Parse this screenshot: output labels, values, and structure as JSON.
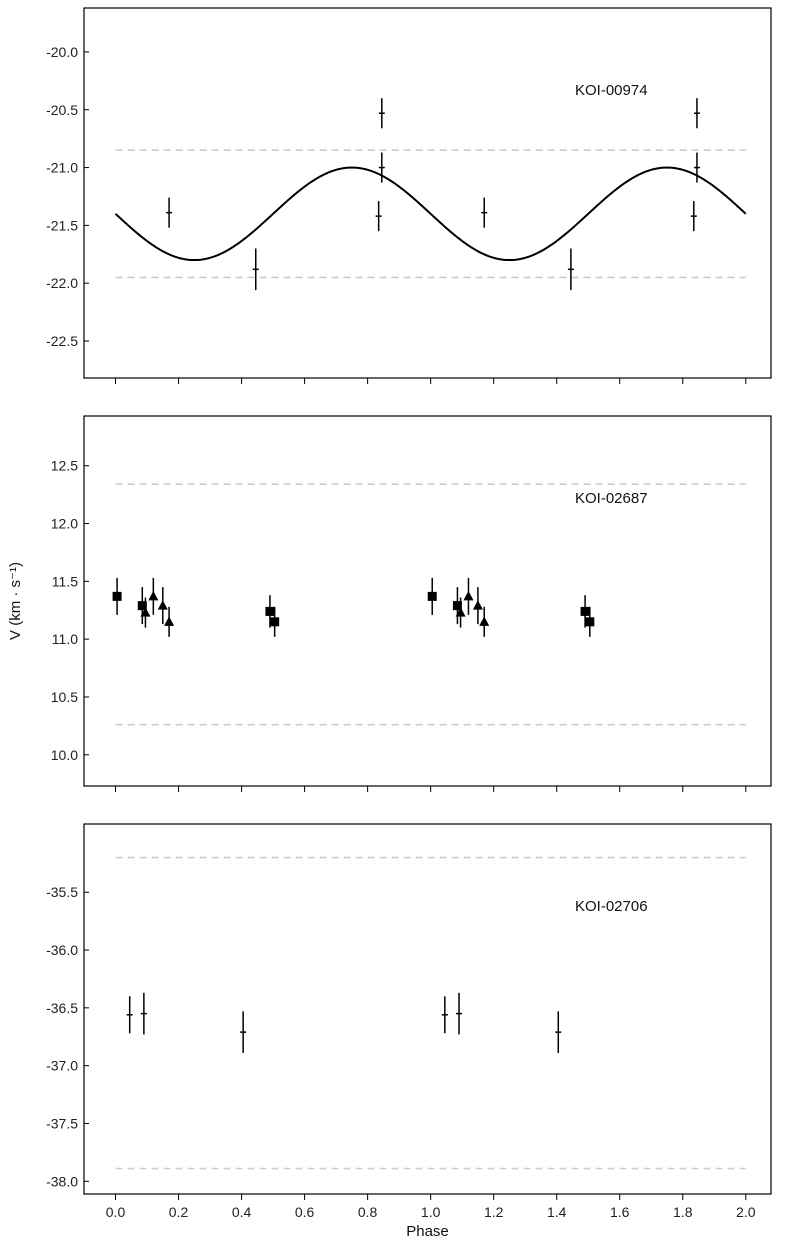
{
  "chart_data": [
    {
      "type": "scatter",
      "label": "KOI-00974",
      "ylim": [
        -22.82,
        -19.62
      ],
      "yticks": [
        -20.0,
        -20.5,
        -21.0,
        -21.5,
        -22.0,
        -22.5
      ],
      "ytick_labels": [
        "-20.0",
        "-20.5",
        "-21.0",
        "-21.5",
        "-22.0",
        "-22.5"
      ],
      "reference_lines": [
        -20.85,
        -21.95
      ],
      "model_curve": {
        "kind": "sinusoid",
        "mean": -21.4,
        "amplitude": 0.4,
        "minimum_phase": 0.25,
        "period": 1.0
      },
      "series": [
        {
          "marker": "cross",
          "points": [
            {
              "x": 0.17,
              "y": -21.39,
              "err": 0.13
            },
            {
              "x": 0.445,
              "y": -21.88,
              "err": 0.18
            },
            {
              "x": 0.835,
              "y": -21.42,
              "err": 0.13
            },
            {
              "x": 0.845,
              "y": -20.53,
              "err": 0.13
            },
            {
              "x": 0.845,
              "y": -21.0,
              "err": 0.13
            },
            {
              "x": 1.17,
              "y": -21.39,
              "err": 0.13
            },
            {
              "x": 1.445,
              "y": -21.88,
              "err": 0.18
            },
            {
              "x": 1.835,
              "y": -21.42,
              "err": 0.13
            },
            {
              "x": 1.845,
              "y": -20.53,
              "err": 0.13
            },
            {
              "x": 1.845,
              "y": -21.0,
              "err": 0.13
            }
          ]
        }
      ]
    },
    {
      "type": "scatter",
      "label": "KOI-02687",
      "ylim": [
        9.73,
        12.93
      ],
      "yticks": [
        10.0,
        10.5,
        11.0,
        11.5,
        12.0,
        12.5
      ],
      "ytick_labels": [
        "10.0",
        "10.5",
        "11.0",
        "11.5",
        "12.0",
        "12.5"
      ],
      "ylabel": "V (km · s⁻¹)",
      "reference_lines": [
        12.34,
        10.26
      ],
      "series": [
        {
          "marker": "square",
          "points": [
            {
              "x": 0.005,
              "y": 11.37,
              "err": 0.16
            },
            {
              "x": 0.085,
              "y": 11.29,
              "err": 0.16
            },
            {
              "x": 0.49,
              "y": 11.24,
              "err": 0.14
            },
            {
              "x": 0.505,
              "y": 11.15,
              "err": 0.13
            },
            {
              "x": 1.005,
              "y": 11.37,
              "err": 0.16
            },
            {
              "x": 1.085,
              "y": 11.29,
              "err": 0.16
            },
            {
              "x": 1.49,
              "y": 11.24,
              "err": 0.14
            },
            {
              "x": 1.505,
              "y": 11.15,
              "err": 0.13
            }
          ]
        },
        {
          "marker": "triangle",
          "points": [
            {
              "x": 0.095,
              "y": 11.23,
              "err": 0.13
            },
            {
              "x": 0.12,
              "y": 11.37,
              "err": 0.16
            },
            {
              "x": 0.15,
              "y": 11.29,
              "err": 0.16
            },
            {
              "x": 0.17,
              "y": 11.15,
              "err": 0.13
            },
            {
              "x": 1.095,
              "y": 11.23,
              "err": 0.13
            },
            {
              "x": 1.12,
              "y": 11.37,
              "err": 0.16
            },
            {
              "x": 1.15,
              "y": 11.29,
              "err": 0.16
            },
            {
              "x": 1.17,
              "y": 11.15,
              "err": 0.13
            }
          ]
        }
      ]
    },
    {
      "type": "scatter",
      "label": "KOI-02706",
      "ylim": [
        -38.11,
        -34.91
      ],
      "yticks": [
        -35.5,
        -36.0,
        -36.5,
        -37.0,
        -37.5,
        -38.0
      ],
      "ytick_labels": [
        "-35.5",
        "-36.0",
        "-36.5",
        "-37.0",
        "-37.5",
        "-38.0"
      ],
      "reference_lines": [
        -35.2,
        -37.89
      ],
      "series": [
        {
          "marker": "cross",
          "points": [
            {
              "x": 0.045,
              "y": -36.56,
              "err": 0.16
            },
            {
              "x": 0.09,
              "y": -36.55,
              "err": 0.18
            },
            {
              "x": 0.405,
              "y": -36.71,
              "err": 0.18
            },
            {
              "x": 1.045,
              "y": -36.56,
              "err": 0.16
            },
            {
              "x": 1.09,
              "y": -36.55,
              "err": 0.18
            },
            {
              "x": 1.405,
              "y": -36.71,
              "err": 0.18
            }
          ]
        }
      ]
    }
  ],
  "x_axis": {
    "label": "Phase",
    "xlim": [
      -0.1,
      2.08
    ],
    "ticks": [
      0.0,
      0.2,
      0.4,
      0.6,
      0.8,
      1.0,
      1.2,
      1.4,
      1.6,
      1.8,
      2.0
    ],
    "tick_labels": [
      "0.0",
      "0.2",
      "0.4",
      "0.6",
      "0.8",
      "1.0",
      "1.2",
      "1.4",
      "1.6",
      "1.8",
      "2.0"
    ]
  },
  "colors": {
    "data": "#000000",
    "reference_line": "#cccccc",
    "axes": "#000000"
  },
  "grid": false
}
